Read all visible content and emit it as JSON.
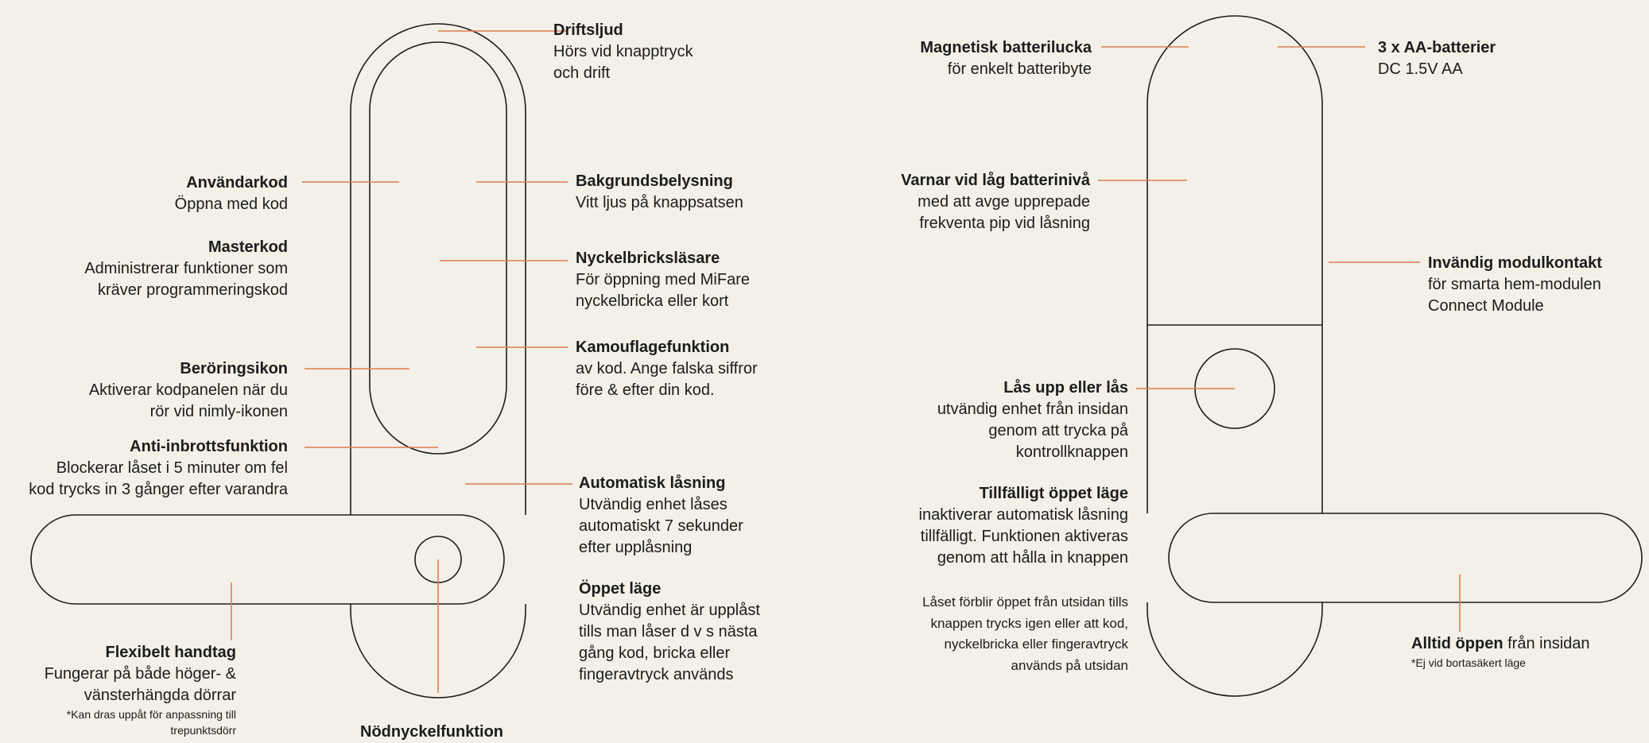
{
  "colors": {
    "background": "#f2f0e7",
    "outline": "#1c1c1c",
    "leader": "#e07a52"
  },
  "callouts": {
    "driftsljud": {
      "title": "Driftsljud",
      "lines": [
        "Hörs vid knapptryck",
        "och drift"
      ]
    },
    "anvandarkod": {
      "title": "Användarkod",
      "lines": [
        "Öppna med kod"
      ]
    },
    "masterkod": {
      "title": "Masterkod",
      "lines": [
        "Administrerar funktioner som",
        "kräver programmeringskod"
      ]
    },
    "beroringsikon": {
      "title": "Beröringsikon",
      "lines": [
        "Aktiverar kodpanelen när du",
        "rör vid nimly-ikonen"
      ]
    },
    "antiinbrott": {
      "title": "Anti-inbrottsfunktion",
      "lines": [
        "Blockerar låset i 5 minuter om fel",
        "kod trycks in 3 gånger efter varandra"
      ]
    },
    "bakgrund": {
      "title": "Bakgrundsbelysning",
      "lines": [
        "Vitt ljus på knappsatsen"
      ]
    },
    "nyckelbricka": {
      "title": "Nyckelbricksläsare",
      "lines": [
        "För öppning med MiFare",
        "nyckelbricka eller kort"
      ]
    },
    "kamouflage": {
      "title": "Kamouflagefunktion",
      "lines": [
        "av kod. Ange falska siffror",
        "före & efter din kod."
      ]
    },
    "automatisk": {
      "title": "Automatisk låsning",
      "lines": [
        "Utvändig enhet låses",
        "automatiskt 7 sekunder",
        "efter upplåsning"
      ]
    },
    "oppet": {
      "title": "Öppet läge",
      "lines": [
        "Utvändig enhet är upplåst",
        "tills man låser d v s nästa",
        "gång kod, bricka eller",
        "fingeravtryck används"
      ]
    },
    "flexibelt": {
      "title": "Flexibelt handtag",
      "lines": [
        "Fungerar på både höger- &",
        "vänsterhängda dörrar"
      ],
      "notes": [
        "*Kan dras uppåt för anpassning till",
        "trepunktsdörr"
      ]
    },
    "nodnyckel": {
      "title": "Nödnyckelfunktion"
    },
    "batterilucka": {
      "title": "Magnetisk batterilucka",
      "lines": [
        "för enkelt batteribyte"
      ]
    },
    "batterier": {
      "title": "3 x AA-batterier",
      "lines": [
        "DC 1.5V AA"
      ]
    },
    "lagbatteri": {
      "title": "Varnar vid låg batterinivå",
      "lines": [
        "med att avge upprepade",
        "frekventa pip vid låsning"
      ]
    },
    "modulkontakt": {
      "title": "Invändig modulkontakt",
      "lines": [
        "för smarta hem-modulen",
        "Connect Module"
      ]
    },
    "lasupp": {
      "title": "Lås upp eller lås",
      "lines": [
        "utvändig enhet från insidan",
        "genom att trycka på",
        "kontrollknappen"
      ]
    },
    "tillfalligt": {
      "title": "Tillfälligt öppet läge",
      "lines": [
        "inaktiverar automatisk låsning",
        "tillfälligt. Funktionen aktiveras",
        "genom att hålla in knappen"
      ]
    },
    "alltid": {
      "title": "Alltid öppen",
      "title_rest": " från insidan",
      "notes": [
        "*Ej vid bortasäkert läge"
      ]
    }
  },
  "note_block": {
    "lines": [
      "Låset förblir öppet från utsidan tills",
      "knappen trycks igen eller att kod,",
      "nyckelbricka eller fingeravtryck",
      "används på utsidan"
    ]
  }
}
